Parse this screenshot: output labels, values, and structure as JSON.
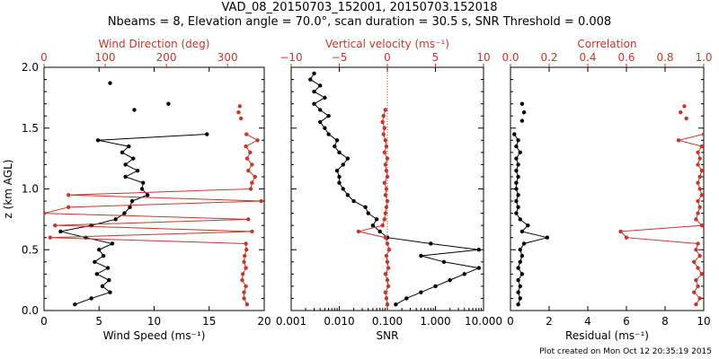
{
  "title_line1": "VAD_08_20150703_152001, 20150703.152018",
  "title_line2": "Nbeams = 8, Elevation angle = 70.0°, scan duration = 30.5 s, SNR Threshold = 0.008",
  "stamp": "Plot created on Mon Oct 12 20:35:19 2015",
  "colors": {
    "black": "#000000",
    "red": "#c0392b"
  },
  "chart_data": [
    {
      "type": "line",
      "name": "wind",
      "ylabel": "z (km AGL)",
      "ylim": [
        0,
        2.0
      ],
      "yticks": [
        "0.0",
        "0.5",
        "1.0",
        "1.5",
        "2.0"
      ],
      "bottom_axis": {
        "label": "Wind Speed (ms⁻¹)",
        "lim": [
          0,
          20
        ],
        "ticks": [
          "0",
          "5",
          "10",
          "15",
          "20"
        ]
      },
      "top_axis": {
        "label": "Wind Direction (deg)",
        "lim": [
          0,
          360
        ],
        "ticks": [
          "0",
          "100",
          "200",
          "300"
        ]
      },
      "series": [
        {
          "name": "Wind Speed",
          "axis": "bottom",
          "color": "black",
          "z": [
            0.05,
            0.1,
            0.15,
            0.2,
            0.25,
            0.3,
            0.35,
            0.4,
            0.45,
            0.5,
            0.55,
            0.6,
            0.65,
            0.7,
            0.75,
            0.8,
            0.85,
            0.9,
            0.95,
            1.0,
            1.05,
            1.1,
            1.15,
            1.2,
            1.25,
            1.3,
            1.35,
            1.4,
            1.45
          ],
          "values": [
            2.8,
            4.3,
            6.0,
            5.3,
            5.9,
            4.8,
            5.8,
            4.6,
            5.4,
            5.0,
            6.2,
            3.8,
            1.5,
            4.3,
            6.5,
            7.3,
            7.8,
            8.0,
            9.4,
            8.9,
            9.0,
            7.4,
            8.5,
            7.4,
            8.1,
            7.1,
            7.7,
            4.9,
            14.8
          ]
        },
        {
          "name": "Wind Speed (isolated)",
          "axis": "bottom",
          "color": "black",
          "z": [
            1.87,
            1.7,
            1.65
          ],
          "values": [
            6.0,
            11.3,
            8.2
          ]
        },
        {
          "name": "Wind Direction",
          "axis": "top",
          "color": "red",
          "z": [
            0.05,
            0.1,
            0.15,
            0.2,
            0.25,
            0.3,
            0.35,
            0.4,
            0.45,
            0.5,
            0.55,
            0.6,
            0.65,
            0.7,
            0.75,
            0.8,
            0.85,
            0.9,
            0.95,
            1.0,
            1.05,
            1.1,
            1.15,
            1.2,
            1.25,
            1.3,
            1.35,
            1.4,
            1.45
          ],
          "values": [
            332,
            327,
            327,
            330,
            324,
            325,
            330,
            327,
            328,
            331,
            330,
            10,
            340,
            18,
            334,
            0,
            40,
            355,
            40,
            338,
            340,
            345,
            334,
            340,
            332,
            337,
            330,
            349,
            331
          ]
        },
        {
          "name": "Wind Direction (isolated)",
          "axis": "top",
          "color": "red",
          "z": [
            1.68,
            1.63,
            1.58
          ],
          "values": [
            320,
            318,
            322
          ]
        }
      ]
    },
    {
      "type": "line",
      "name": "snr",
      "xscale": "log",
      "ylim": [
        0,
        2.0
      ],
      "bottom_axis": {
        "label": "SNR",
        "lim": [
          0.001,
          10
        ],
        "ticks": [
          "0.001",
          "0.010",
          "0.100",
          "1.000",
          "10.000"
        ]
      },
      "top_axis": {
        "label": "Vertical velocity (ms⁻¹)",
        "lim": [
          -10,
          10
        ],
        "ticks": [
          "−10",
          "−5",
          "0",
          "5",
          "10"
        ]
      },
      "series": [
        {
          "name": "SNR",
          "axis": "bottom",
          "color": "black",
          "z": [
            0.05,
            0.1,
            0.15,
            0.2,
            0.25,
            0.3,
            0.35,
            0.4,
            0.45,
            0.5,
            0.55,
            0.6,
            0.65,
            0.7,
            0.75,
            0.8,
            0.85,
            0.9,
            0.95,
            1.0,
            1.05,
            1.1,
            1.15,
            1.2,
            1.25,
            1.3,
            1.35,
            1.4,
            1.45,
            1.5,
            1.55,
            1.6,
            1.65,
            1.7,
            1.75,
            1.8,
            1.85,
            1.9,
            1.95
          ],
          "values": [
            0.15,
            0.25,
            0.5,
            1.0,
            2.0,
            4.0,
            8.0,
            1.5,
            0.5,
            8.0,
            0.8,
            0.1,
            0.07,
            0.05,
            0.06,
            0.04,
            0.035,
            0.02,
            0.015,
            0.012,
            0.01,
            0.01,
            0.009,
            0.012,
            0.015,
            0.01,
            0.008,
            0.009,
            0.006,
            0.005,
            0.004,
            0.006,
            0.004,
            0.003,
            0.005,
            0.003,
            0.004,
            0.0025,
            0.003
          ]
        },
        {
          "name": "Vertical velocity",
          "axis": "top",
          "color": "red",
          "z": [
            0.05,
            0.1,
            0.15,
            0.2,
            0.25,
            0.3,
            0.35,
            0.4,
            0.45,
            0.5,
            0.55,
            0.6,
            0.65,
            0.7,
            0.75,
            0.8,
            0.85,
            0.9,
            0.95,
            1.0,
            1.05,
            1.1,
            1.15,
            1.2,
            1.25,
            1.3,
            1.35,
            1.4,
            1.45,
            1.5,
            1.55,
            1.6,
            1.65
          ],
          "values": [
            0.0,
            -0.1,
            -0.2,
            0.1,
            0.0,
            -0.2,
            0.1,
            0.0,
            -0.1,
            0.2,
            0.0,
            -0.2,
            -3.0,
            -0.5,
            -0.3,
            -0.2,
            -0.1,
            0.0,
            -0.2,
            -0.1,
            -0.3,
            0.0,
            -0.1,
            -0.2,
            0.0,
            -0.3,
            -0.1,
            -0.2,
            -0.4,
            -0.3,
            -0.5,
            -0.4,
            -0.2
          ]
        }
      ],
      "reference_line": {
        "axis": "top",
        "value": 0,
        "style": "dotted",
        "color": "red"
      }
    },
    {
      "type": "line",
      "name": "residual",
      "ylim": [
        0,
        2.0
      ],
      "bottom_axis": {
        "label": "Residual (ms⁻¹)",
        "lim": [
          0,
          10
        ],
        "ticks": [
          "0",
          "2",
          "4",
          "6",
          "8",
          "10"
        ]
      },
      "top_axis": {
        "label": "Correlation",
        "lim": [
          0,
          1.0
        ],
        "ticks": [
          "0.0",
          "0.2",
          "0.4",
          "0.6",
          "0.8",
          "1.0"
        ]
      },
      "series": [
        {
          "name": "Residual",
          "axis": "bottom",
          "color": "black",
          "z": [
            0.05,
            0.1,
            0.15,
            0.2,
            0.25,
            0.3,
            0.35,
            0.4,
            0.45,
            0.5,
            0.55,
            0.6,
            0.65,
            0.7,
            0.75,
            0.8,
            0.85,
            0.9,
            0.95,
            1.0,
            1.05,
            1.1,
            1.15,
            1.2,
            1.25,
            1.3,
            1.35,
            1.4,
            1.45
          ],
          "values": [
            0.4,
            0.5,
            0.4,
            0.5,
            0.4,
            0.6,
            0.4,
            0.5,
            0.6,
            0.5,
            0.7,
            1.9,
            0.6,
            0.9,
            0.5,
            0.3,
            0.4,
            0.3,
            0.4,
            0.3,
            0.3,
            0.4,
            0.3,
            0.4,
            0.3,
            0.5,
            0.3,
            0.4,
            0.2
          ]
        },
        {
          "name": "Residual (isolated)",
          "axis": "bottom",
          "color": "black",
          "z": [
            1.7,
            1.63,
            1.56
          ],
          "values": [
            0.6,
            0.7,
            0.6
          ]
        },
        {
          "name": "Correlation",
          "axis": "top",
          "color": "red",
          "z": [
            0.05,
            0.1,
            0.15,
            0.2,
            0.25,
            0.3,
            0.35,
            0.4,
            0.45,
            0.5,
            0.55,
            0.6,
            0.65,
            0.7,
            0.75,
            0.8,
            0.85,
            0.9,
            0.95,
            1.0,
            1.05,
            1.1,
            1.15,
            1.2,
            1.25,
            1.3,
            1.35,
            1.4,
            1.45
          ],
          "values": [
            0.96,
            0.98,
            0.95,
            0.97,
            0.96,
            0.99,
            0.97,
            0.95,
            0.98,
            0.96,
            0.97,
            0.6,
            0.57,
            0.99,
            0.96,
            0.97,
            0.98,
            0.97,
            0.99,
            0.98,
            0.97,
            0.98,
            0.99,
            0.97,
            0.98,
            0.97,
            0.99,
            0.87,
            1.0
          ]
        },
        {
          "name": "Correlation (isolated)",
          "axis": "top",
          "color": "red",
          "z": [
            1.68,
            1.63,
            1.58
          ],
          "values": [
            0.9,
            0.88,
            0.91
          ]
        }
      ]
    }
  ]
}
